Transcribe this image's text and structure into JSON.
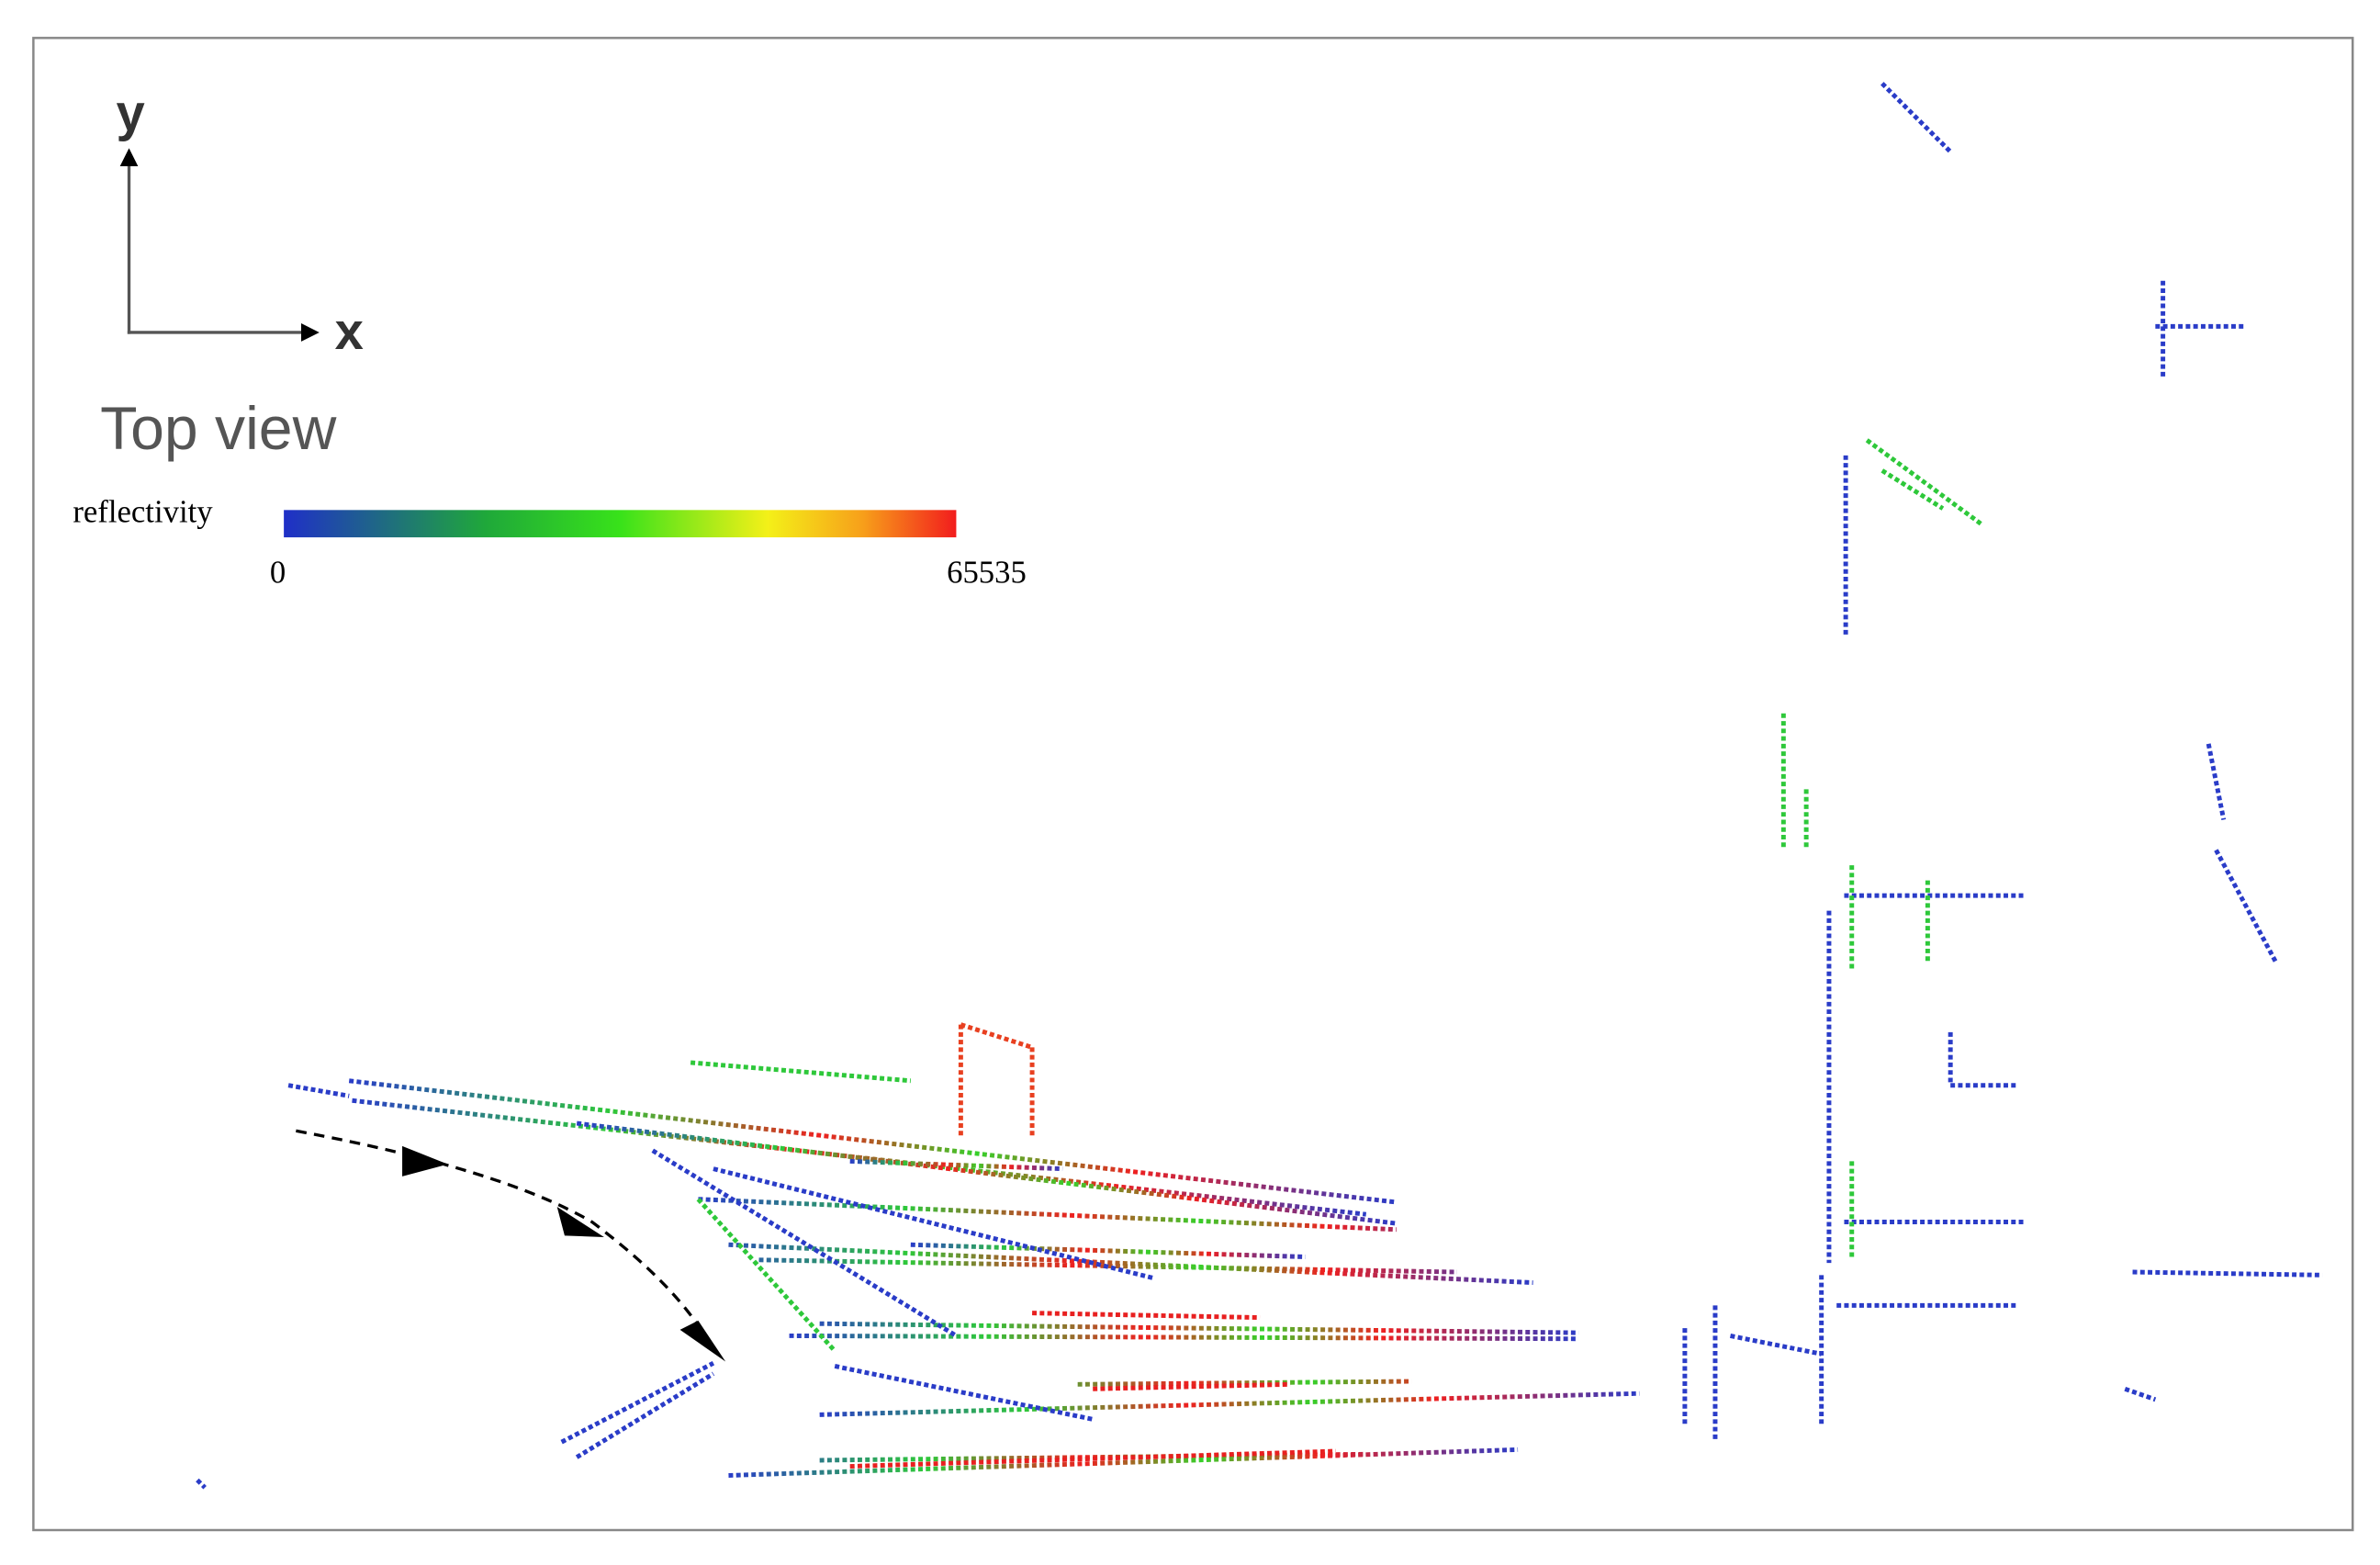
{
  "axes": {
    "y_label": "y",
    "x_label": "x"
  },
  "view_title": "Top view",
  "colorbar": {
    "label": "reflectivity",
    "min": 0,
    "max": 65535
  }
}
